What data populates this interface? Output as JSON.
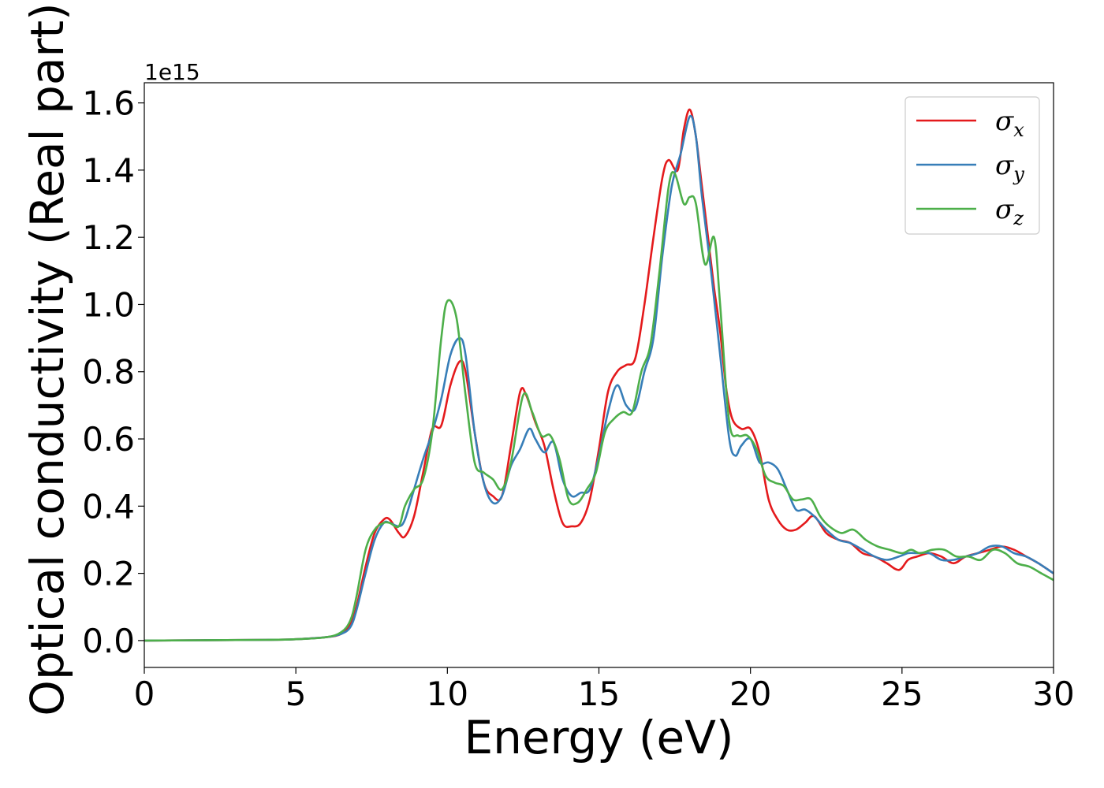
{
  "chart_data": {
    "type": "line",
    "title": "",
    "xlabel": "Energy (eV)",
    "ylabel": "Optical conductivity (Real part)",
    "y_offset_text": "1e15",
    "xlim": [
      0,
      30
    ],
    "ylim": [
      -0.08,
      1.66
    ],
    "x_ticks": [
      0,
      5,
      10,
      15,
      20,
      25,
      30
    ],
    "x_tick_labels": [
      "0",
      "5",
      "10",
      "15",
      "20",
      "25",
      "30"
    ],
    "y_ticks": [
      0.0,
      0.2,
      0.4,
      0.6,
      0.8,
      1.0,
      1.2,
      1.4,
      1.6
    ],
    "y_tick_labels": [
      "0.0",
      "0.2",
      "0.4",
      "0.6",
      "0.8",
      "1.0",
      "1.2",
      "1.4",
      "1.6"
    ],
    "grid": false,
    "legend_position": "top-right",
    "series": [
      {
        "name": "σx",
        "name_base": "σ",
        "name_sub": "x",
        "color": "#e41a1c",
        "x": [
          0,
          4,
          5,
          6,
          6.5,
          6.8,
          7,
          7.3,
          7.6,
          7.9,
          8.1,
          8.4,
          8.6,
          8.9,
          9.2,
          9.5,
          9.8,
          10.1,
          10.4,
          10.6,
          10.9,
          11.2,
          11.5,
          11.8,
          12.1,
          12.4,
          12.6,
          12.9,
          13.2,
          13.5,
          13.8,
          14.1,
          14.4,
          14.7,
          15.0,
          15.3,
          15.6,
          15.9,
          16.2,
          16.5,
          16.8,
          17.1,
          17.3,
          17.6,
          17.8,
          18.0,
          18.2,
          18.4,
          18.6,
          18.8,
          19.0,
          19.2,
          19.4,
          19.7,
          20.0,
          20.3,
          20.6,
          20.9,
          21.2,
          21.5,
          21.8,
          22.1,
          22.5,
          22.9,
          23.3,
          23.7,
          24.1,
          24.5,
          24.9,
          25.2,
          25.5,
          25.9,
          26.3,
          26.7,
          27.1,
          27.5,
          27.9,
          28.3,
          28.7,
          29.1,
          29.5,
          30.0
        ],
        "y": [
          0,
          0.002,
          0.004,
          0.01,
          0.02,
          0.05,
          0.1,
          0.22,
          0.32,
          0.36,
          0.36,
          0.32,
          0.31,
          0.37,
          0.5,
          0.63,
          0.64,
          0.76,
          0.83,
          0.8,
          0.62,
          0.47,
          0.43,
          0.43,
          0.58,
          0.74,
          0.73,
          0.65,
          0.58,
          0.45,
          0.35,
          0.34,
          0.35,
          0.42,
          0.57,
          0.74,
          0.8,
          0.82,
          0.84,
          1.0,
          1.2,
          1.38,
          1.43,
          1.4,
          1.52,
          1.58,
          1.5,
          1.35,
          1.2,
          1.05,
          0.92,
          0.75,
          0.66,
          0.63,
          0.63,
          0.56,
          0.42,
          0.36,
          0.33,
          0.33,
          0.35,
          0.37,
          0.32,
          0.3,
          0.29,
          0.26,
          0.25,
          0.23,
          0.21,
          0.24,
          0.25,
          0.26,
          0.25,
          0.23,
          0.25,
          0.26,
          0.27,
          0.28,
          0.27,
          0.25,
          0.23,
          0.2
        ]
      },
      {
        "name": "σy",
        "name_base": "σ",
        "name_sub": "y",
        "color": "#377eb8",
        "x": [
          0,
          4,
          5,
          6,
          6.5,
          6.8,
          7,
          7.3,
          7.6,
          7.9,
          8.1,
          8.4,
          8.6,
          8.9,
          9.2,
          9.5,
          9.8,
          10.1,
          10.4,
          10.6,
          10.9,
          11.2,
          11.5,
          11.8,
          12.1,
          12.4,
          12.7,
          12.9,
          13.2,
          13.5,
          13.8,
          14.1,
          14.4,
          14.7,
          15.0,
          15.3,
          15.6,
          15.9,
          16.2,
          16.5,
          16.8,
          17.1,
          17.4,
          17.7,
          18.0,
          18.2,
          18.4,
          18.7,
          19.0,
          19.3,
          19.5,
          19.7,
          20.0,
          20.3,
          20.6,
          20.9,
          21.2,
          21.5,
          21.8,
          22.1,
          22.5,
          22.9,
          23.3,
          23.7,
          24.1,
          24.5,
          24.9,
          25.2,
          25.5,
          25.9,
          26.3,
          26.7,
          27.1,
          27.5,
          27.9,
          28.3,
          28.7,
          29.1,
          29.5,
          30.0
        ],
        "y": [
          0,
          0.002,
          0.004,
          0.01,
          0.02,
          0.04,
          0.09,
          0.2,
          0.3,
          0.35,
          0.35,
          0.34,
          0.36,
          0.45,
          0.54,
          0.62,
          0.72,
          0.85,
          0.9,
          0.85,
          0.62,
          0.47,
          0.41,
          0.43,
          0.52,
          0.57,
          0.63,
          0.6,
          0.56,
          0.59,
          0.48,
          0.43,
          0.44,
          0.45,
          0.55,
          0.68,
          0.76,
          0.7,
          0.69,
          0.8,
          0.9,
          1.15,
          1.35,
          1.45,
          1.56,
          1.5,
          1.32,
          1.1,
          0.85,
          0.6,
          0.55,
          0.58,
          0.6,
          0.53,
          0.53,
          0.51,
          0.45,
          0.39,
          0.39,
          0.37,
          0.33,
          0.3,
          0.29,
          0.27,
          0.25,
          0.24,
          0.25,
          0.26,
          0.26,
          0.26,
          0.24,
          0.24,
          0.25,
          0.26,
          0.28,
          0.28,
          0.26,
          0.25,
          0.23,
          0.2
        ]
      },
      {
        "name": "σz",
        "name_base": "σ",
        "name_sub": "z",
        "color": "#4daf4a",
        "x": [
          0,
          4,
          5,
          6,
          6.5,
          6.8,
          7,
          7.3,
          7.6,
          7.9,
          8.1,
          8.4,
          8.6,
          8.9,
          9.2,
          9.5,
          9.8,
          10.0,
          10.3,
          10.6,
          10.9,
          11.2,
          11.5,
          11.8,
          12.1,
          12.5,
          12.8,
          13.1,
          13.4,
          13.7,
          14.0,
          14.3,
          14.6,
          14.9,
          15.2,
          15.5,
          15.8,
          16.1,
          16.4,
          16.7,
          17.0,
          17.3,
          17.5,
          17.8,
          18.0,
          18.2,
          18.5,
          18.8,
          19.0,
          19.3,
          19.6,
          19.9,
          20.2,
          20.5,
          20.8,
          21.1,
          21.4,
          21.7,
          22.0,
          22.3,
          22.6,
          23.0,
          23.4,
          23.8,
          24.2,
          24.6,
          25.0,
          25.3,
          25.6,
          26.0,
          26.4,
          26.8,
          27.2,
          27.6,
          28.0,
          28.4,
          28.8,
          29.2,
          29.6,
          30.0
        ],
        "y": [
          0,
          0.002,
          0.004,
          0.01,
          0.025,
          0.06,
          0.13,
          0.27,
          0.33,
          0.35,
          0.35,
          0.34,
          0.4,
          0.45,
          0.48,
          0.62,
          0.9,
          1.01,
          0.96,
          0.73,
          0.53,
          0.5,
          0.48,
          0.45,
          0.53,
          0.73,
          0.68,
          0.61,
          0.61,
          0.54,
          0.42,
          0.41,
          0.45,
          0.5,
          0.62,
          0.66,
          0.68,
          0.68,
          0.8,
          0.88,
          1.1,
          1.35,
          1.39,
          1.3,
          1.32,
          1.3,
          1.12,
          1.2,
          1.0,
          0.65,
          0.61,
          0.61,
          0.57,
          0.49,
          0.47,
          0.46,
          0.42,
          0.42,
          0.42,
          0.37,
          0.34,
          0.32,
          0.33,
          0.3,
          0.28,
          0.27,
          0.26,
          0.27,
          0.26,
          0.27,
          0.27,
          0.25,
          0.25,
          0.24,
          0.27,
          0.26,
          0.23,
          0.22,
          0.2,
          0.18
        ]
      }
    ]
  }
}
